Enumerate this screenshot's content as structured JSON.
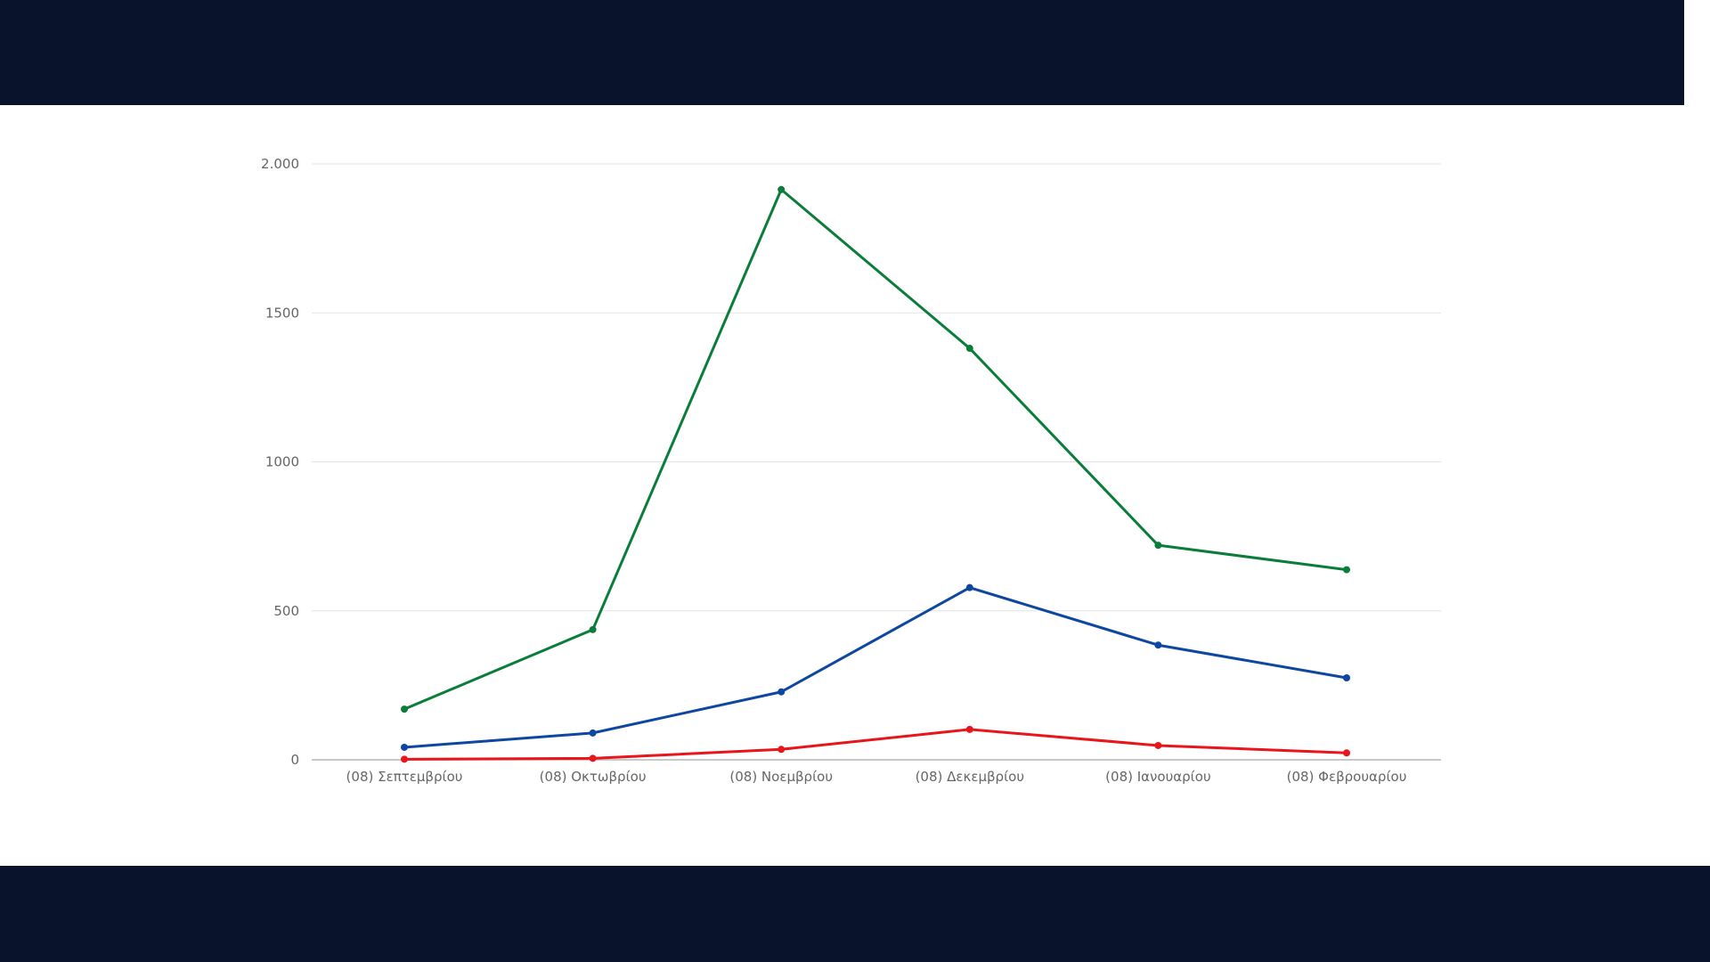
{
  "colors": {
    "band": "#0a132c",
    "grid": "#e4e4e4",
    "axis": "#b5b5b5",
    "tick_text": "#666666"
  },
  "chart_data": {
    "type": "line",
    "title": "",
    "xlabel": "",
    "ylabel": "",
    "categories": [
      "(08) Σεπτεμβρίου",
      "(08) Οκτωβρίου",
      "(08) Νοεμβρίου",
      "(08) Δεκεμβρίου",
      "(08) Ιανουαρίου",
      "(08) Φεβρουαρίου"
    ],
    "y_ticks": [
      {
        "value": 0,
        "label": "0"
      },
      {
        "value": 500,
        "label": "500"
      },
      {
        "value": 1000,
        "label": "1000"
      },
      {
        "value": 1500,
        "label": "1500"
      },
      {
        "value": 2000,
        "label": "2.000"
      }
    ],
    "ylim": [
      0,
      2000
    ],
    "grid": true,
    "legend": "none",
    "series": [
      {
        "color": "#0b7d3a",
        "values": [
          170,
          437,
          1914,
          1381,
          720,
          638
        ]
      },
      {
        "color": "#0d47a1",
        "values": [
          42,
          90,
          228,
          578,
          385,
          275
        ]
      },
      {
        "color": "#e8161b",
        "values": [
          2,
          5,
          35,
          102,
          48,
          23
        ]
      }
    ]
  }
}
